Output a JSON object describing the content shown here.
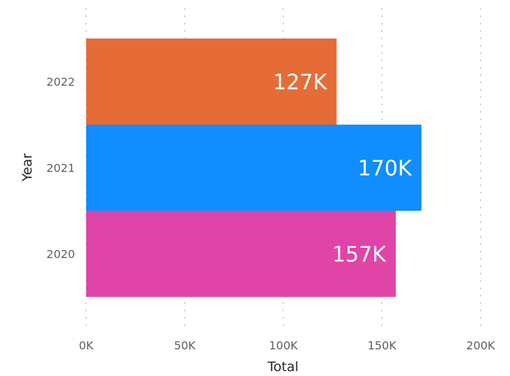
{
  "chart_data": {
    "type": "bar",
    "orientation": "horizontal",
    "categories": [
      "2022",
      "2021",
      "2020"
    ],
    "values": [
      127000,
      170000,
      157000
    ],
    "data_labels": [
      "127K",
      "170K",
      "157K"
    ],
    "colors": [
      "#E66C37",
      "#118DFF",
      "#E044A7"
    ],
    "xlabel": "Total",
    "ylabel": "Year",
    "xlim": [
      0,
      200000
    ],
    "x_ticks": [
      0,
      50000,
      100000,
      150000,
      200000
    ],
    "x_tick_labels": [
      "0K",
      "50K",
      "100K",
      "150K",
      "200K"
    ],
    "grid": "vertical dotted"
  }
}
